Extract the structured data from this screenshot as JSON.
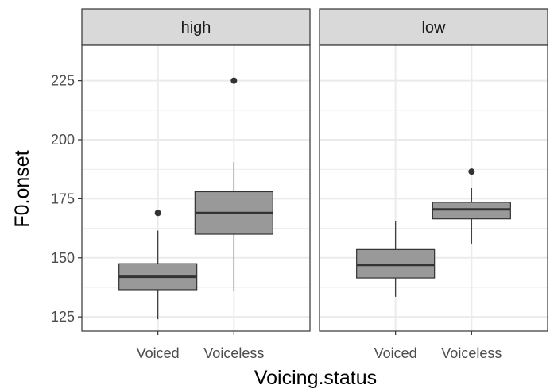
{
  "chart_data": {
    "type": "boxplot",
    "xlabel": "Voicing.status",
    "ylabel": "F0.onset",
    "ylim": [
      119,
      240
    ],
    "yticks": [
      125,
      150,
      175,
      200,
      225
    ],
    "categories": [
      "Voiced",
      "Voiceless"
    ],
    "panels": [
      {
        "label": "high",
        "boxes": [
          {
            "category": "Voiced",
            "min": 124,
            "q1": 136.5,
            "median": 142,
            "q3": 147.5,
            "max": 161.5,
            "outliers": [
              169
            ]
          },
          {
            "category": "Voiceless",
            "min": 136,
            "q1": 160,
            "median": 169,
            "q3": 178,
            "max": 190.5,
            "outliers": [
              225
            ]
          }
        ]
      },
      {
        "label": "low",
        "boxes": [
          {
            "category": "Voiced",
            "min": 133.5,
            "q1": 141.5,
            "median": 147,
            "q3": 153.5,
            "max": 165.5,
            "outliers": []
          },
          {
            "category": "Voiceless",
            "min": 156,
            "q1": 166.5,
            "median": 170.5,
            "q3": 173.5,
            "max": 179.5,
            "outliers": [
              186.5
            ]
          }
        ]
      }
    ],
    "grid": true,
    "colors": {
      "box_fill": "#999999",
      "box_stroke": "#333333",
      "strip_fill": "#d9d9d9",
      "panel_border": "#333333",
      "grid": "#ebebeb"
    }
  }
}
